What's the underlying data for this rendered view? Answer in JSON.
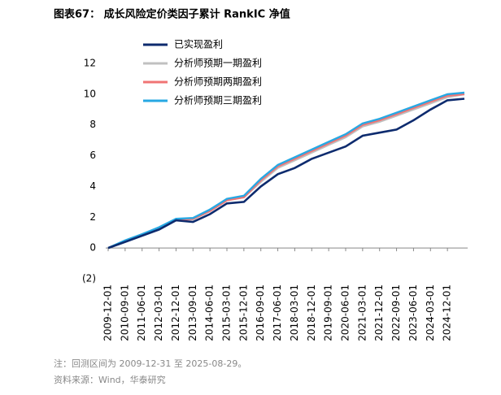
{
  "chart_data": {
    "type": "line",
    "title": "图表67：  成长风险定价类因子累计 RankIC 净值",
    "categories": [
      "2009-12-01",
      "2010-09-01",
      "2011-06-01",
      "2012-03-01",
      "2012-12-01",
      "2013-09-01",
      "2014-06-01",
      "2015-03-01",
      "2015-12-01",
      "2016-09-01",
      "2017-06-01",
      "2018-03-01",
      "2018-12-01",
      "2019-09-01",
      "2020-06-01",
      "2021-03-01",
      "2021-12-01",
      "2022-09-01",
      "2023-06-01",
      "2024-03-01",
      "2024-12-01",
      null
    ],
    "series": [
      {
        "name": "已实现盈利",
        "color": "#0d2b6e",
        "values": [
          0,
          0.4,
          0.8,
          1.2,
          1.8,
          1.7,
          2.2,
          2.9,
          3.0,
          4.0,
          4.8,
          5.2,
          5.8,
          6.2,
          6.6,
          7.3,
          7.5,
          7.7,
          8.3,
          9.0,
          9.6,
          9.7
        ]
      },
      {
        "name": "分析师预期一期盈利",
        "color": "#c0c0c0",
        "values": [
          0,
          0.45,
          0.9,
          1.3,
          1.85,
          1.85,
          2.4,
          3.1,
          3.3,
          4.3,
          5.2,
          5.7,
          6.2,
          6.7,
          7.2,
          7.9,
          8.2,
          8.6,
          9.0,
          9.4,
          9.8,
          10.0
        ]
      },
      {
        "name": "分析师预期两期盈利",
        "color": "#f07474",
        "values": [
          0,
          0.45,
          0.85,
          1.3,
          1.8,
          1.9,
          2.4,
          3.1,
          3.3,
          4.4,
          5.3,
          5.8,
          6.3,
          6.8,
          7.3,
          8.0,
          8.3,
          8.7,
          9.1,
          9.5,
          9.9,
          10.0
        ]
      },
      {
        "name": "分析师预期三期盈利",
        "color": "#27a8e3",
        "values": [
          0,
          0.5,
          0.9,
          1.35,
          1.9,
          1.95,
          2.5,
          3.2,
          3.4,
          4.5,
          5.4,
          5.9,
          6.4,
          6.9,
          7.4,
          8.1,
          8.4,
          8.8,
          9.2,
          9.6,
          10.0,
          10.1
        ]
      }
    ],
    "ylim": [
      -2,
      12
    ],
    "yticks": [
      {
        "value": -2,
        "label": "(2)"
      },
      0,
      2,
      4,
      6,
      8,
      10,
      12
    ]
  },
  "notes": [
    "注：回测区间为 2009-12-31 至 2025-08-29。",
    "资料来源：Wind，华泰研究"
  ]
}
